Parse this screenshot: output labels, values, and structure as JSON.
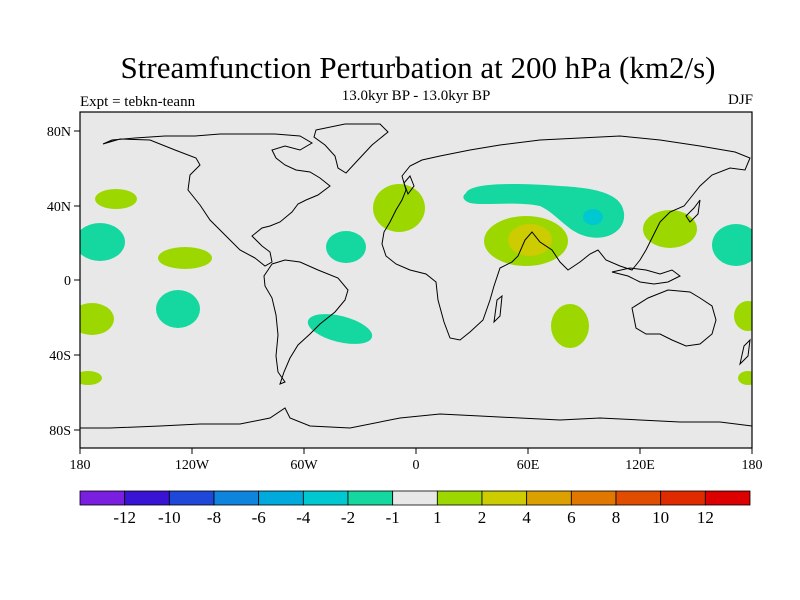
{
  "title": "Streamfunction Perturbation at 200 hPa (km2/s)",
  "subtitle": "13.0kyr BP - 13.0kyr BP",
  "experiment": "Expt = tebkn-teann",
  "season": "DJF",
  "chart_data": {
    "type": "heatmap",
    "projection": "cylindrical equidistant",
    "xlim": [
      -180,
      180
    ],
    "ylim": [
      -90,
      90
    ],
    "x_tick_labels": [
      "180",
      "120W",
      "60W",
      "0",
      "60E",
      "120E",
      "180"
    ],
    "y_tick_labels": [
      "80N",
      "40N",
      "0",
      "40S",
      "80S"
    ],
    "background_color": "#e8e8e8",
    "colorbar": {
      "labels": [
        "-12",
        "-10",
        "-8",
        "-6",
        "-4",
        "-2",
        "-1",
        "1",
        "2",
        "4",
        "6",
        "8",
        "10",
        "12"
      ],
      "colors": [
        "#7a1fe0",
        "#3a14d4",
        "#1e48d8",
        "#0e84dc",
        "#00aadc",
        "#00c8d0",
        "#14d8a0",
        "#e8e8e8",
        "#9cd800",
        "#cccc00",
        "#dca000",
        "#e07800",
        "#e04c00",
        "#e02a00",
        "#dc0000"
      ]
    },
    "anomaly_regions": [
      {
        "name": "north-pacific-positive",
        "lon": -153,
        "lat": 41,
        "value": 1.5
      },
      {
        "name": "central-pacific-negative",
        "lon": -175,
        "lat": 20,
        "value": -1.5
      },
      {
        "name": "east-pacific-positive",
        "lon": -124,
        "lat": 12,
        "value": 1.5
      },
      {
        "name": "atlantic-negative",
        "lon": -38,
        "lat": 17,
        "value": -1.5
      },
      {
        "name": "iberia-positive",
        "lon": -9,
        "lat": 42,
        "value": 1.5
      },
      {
        "name": "eurasia-negative",
        "lon": 75,
        "lat": 43,
        "value": -1.5
      },
      {
        "name": "tibet-negative-core",
        "lon": 96,
        "lat": 32,
        "value": -2.5
      },
      {
        "name": "arabia-positive",
        "lon": 59,
        "lat": 20,
        "value": 2.5
      },
      {
        "name": "arabia-positive-core",
        "lon": 61,
        "lat": 19,
        "value": 4.5
      },
      {
        "name": "east-asia-positive",
        "lon": 131,
        "lat": 27,
        "value": 1.5
      },
      {
        "name": "west-pacific-negative",
        "lon": 170,
        "lat": 18,
        "value": -1.5
      },
      {
        "name": "south-pacific-negative",
        "lon": -139,
        "lat": -17,
        "value": -1.5
      },
      {
        "name": "south-pacific-positive",
        "lon": -174,
        "lat": -21,
        "value": 1.5
      },
      {
        "name": "south-atlantic-negative",
        "lon": -48,
        "lat": -25,
        "value": -1.5
      },
      {
        "name": "indian-ocean-positive",
        "lon": 81,
        "lat": -17,
        "value": 1.5
      },
      {
        "name": "far-south-pacific-positive",
        "lon": -178,
        "lat": -51,
        "value": 1.5
      },
      {
        "name": "far-southwest-pacific-positive",
        "lon": 178,
        "lat": -19,
        "value": 1.5
      },
      {
        "name": "tasman-positive",
        "lon": 178,
        "lat": -51,
        "value": 1.5
      }
    ]
  }
}
